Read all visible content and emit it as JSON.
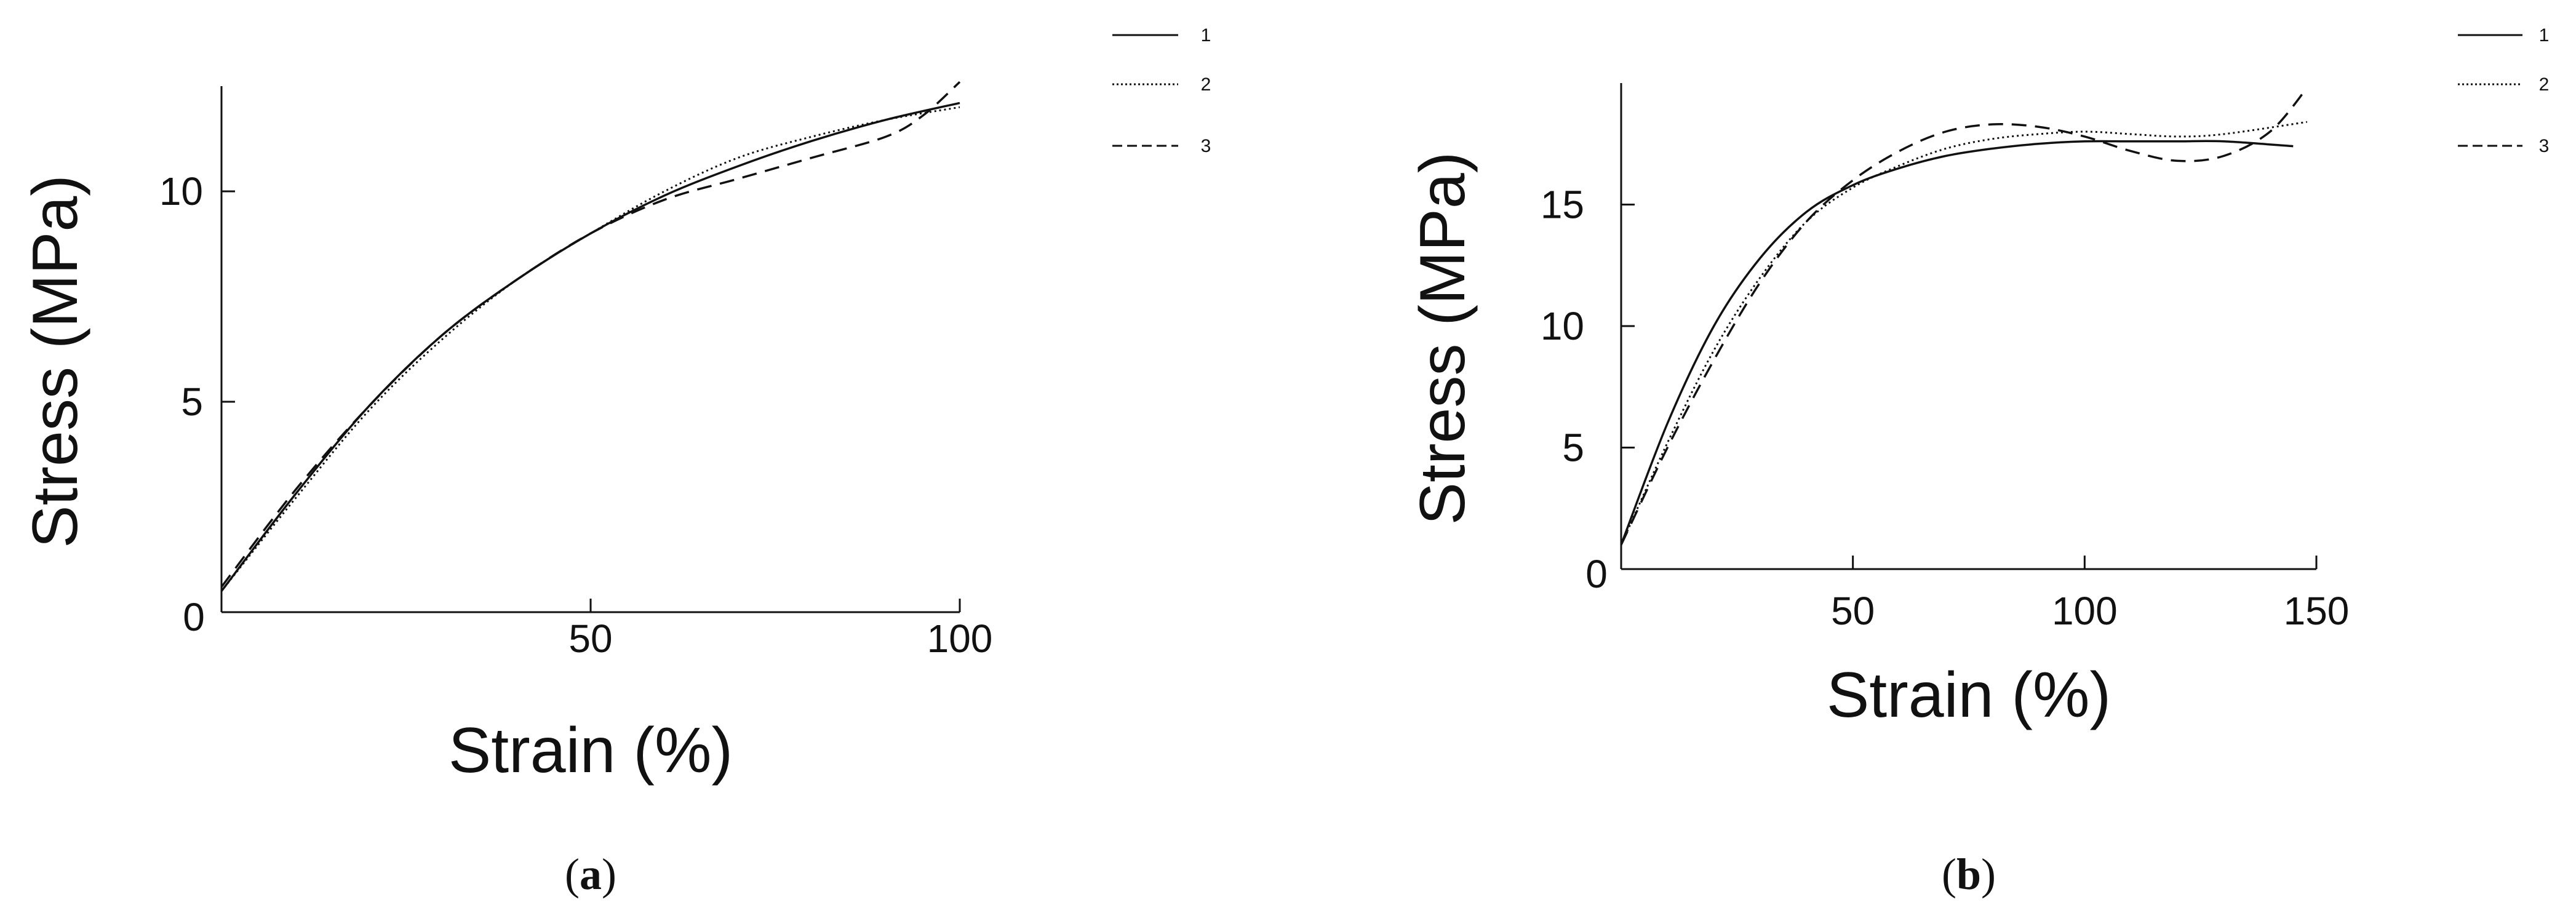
{
  "chart_data": [
    {
      "type": "line",
      "panel_label": {
        "open": "(",
        "letter": "a",
        "close": ")"
      },
      "xlabel": "Strain (%)",
      "ylabel": "Stress (MPa)",
      "xlim": [
        0,
        100
      ],
      "ylim": [
        0,
        12.5
      ],
      "xticks": [
        0,
        50,
        100
      ],
      "xtick_labels": [
        "",
        "50",
        "100"
      ],
      "yticks": [
        5,
        10
      ],
      "ytick_labels": [
        "5",
        "10"
      ],
      "origin_label": "0",
      "grid": false,
      "legend_position": "top-right",
      "series": [
        {
          "name": "1",
          "style": "solid",
          "x": [
            0,
            10,
            20,
            30,
            40,
            50,
            60,
            70,
            80,
            90,
            100
          ],
          "y": [
            0.5,
            2.8,
            4.9,
            6.6,
            7.9,
            9.0,
            9.9,
            10.6,
            11.2,
            11.7,
            12.1
          ]
        },
        {
          "name": "2",
          "style": "dotted",
          "x": [
            0,
            10,
            20,
            30,
            40,
            50,
            60,
            70,
            80,
            90,
            100
          ],
          "y": [
            0.5,
            2.7,
            4.8,
            6.5,
            7.9,
            9.0,
            10.0,
            10.8,
            11.3,
            11.7,
            12.0
          ]
        },
        {
          "name": "3",
          "style": "dashed",
          "x": [
            0,
            10,
            20,
            30,
            40,
            50,
            60,
            70,
            80,
            90,
            95,
            100
          ],
          "y": [
            0.6,
            2.9,
            4.9,
            6.6,
            7.9,
            9.0,
            9.8,
            10.3,
            10.8,
            11.3,
            11.8,
            12.6
          ]
        }
      ]
    },
    {
      "type": "line",
      "panel_label": {
        "open": "(",
        "letter": "b",
        "close": ")"
      },
      "xlabel": "Strain (%)",
      "ylabel": "Stress (MPa)",
      "xlim": [
        0,
        150
      ],
      "ylim": [
        0,
        20
      ],
      "xticks": [
        50,
        100,
        150
      ],
      "xtick_labels": [
        "50",
        "100",
        "150"
      ],
      "yticks": [
        5,
        10,
        15
      ],
      "ytick_labels": [
        "5",
        "10",
        "15"
      ],
      "origin_label": "0",
      "grid": false,
      "legend_position": "top-right",
      "series": [
        {
          "name": "1",
          "style": "solid",
          "x": [
            0,
            10,
            20,
            30,
            40,
            50,
            60,
            70,
            80,
            90,
            100,
            110,
            120,
            130,
            145
          ],
          "y": [
            1.0,
            6.0,
            10.0,
            12.8,
            14.7,
            15.8,
            16.5,
            17.0,
            17.3,
            17.5,
            17.6,
            17.6,
            17.6,
            17.6,
            17.4
          ]
        },
        {
          "name": "2",
          "style": "dotted",
          "x": [
            0,
            10,
            20,
            30,
            40,
            50,
            60,
            70,
            80,
            90,
            100,
            110,
            120,
            130,
            148
          ],
          "y": [
            1.0,
            5.2,
            9.0,
            12.0,
            14.3,
            15.7,
            16.6,
            17.3,
            17.7,
            17.9,
            18.0,
            17.9,
            17.8,
            17.9,
            18.4
          ]
        },
        {
          "name": "3",
          "style": "dashed",
          "x": [
            0,
            10,
            20,
            30,
            40,
            50,
            60,
            70,
            80,
            90,
            100,
            110,
            120,
            130,
            140,
            148
          ],
          "y": [
            1.0,
            5.0,
            8.6,
            11.8,
            14.3,
            16.0,
            17.2,
            18.0,
            18.3,
            18.2,
            17.8,
            17.2,
            16.8,
            17.0,
            18.0,
            19.8
          ]
        }
      ]
    }
  ]
}
